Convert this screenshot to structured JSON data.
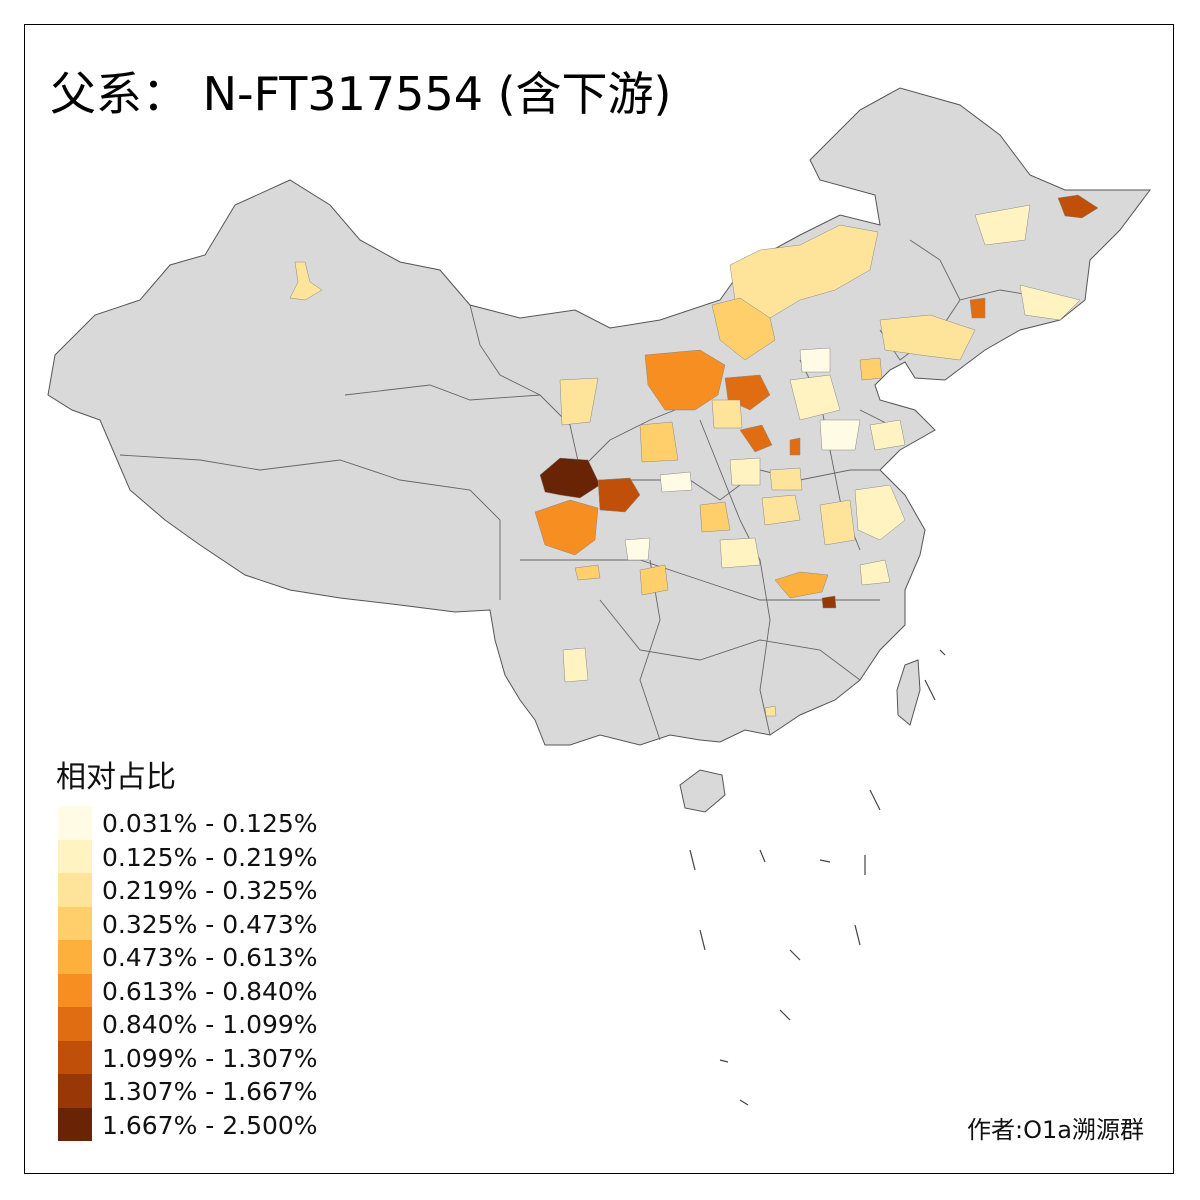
{
  "title": "父系：  N-FT317554 (含下游)",
  "legend": {
    "title": "相对占比",
    "items": [
      {
        "label": "0.031% - 0.125%",
        "color": "#fffbe5"
      },
      {
        "label": "0.125% - 0.219%",
        "color": "#fff3c2"
      },
      {
        "label": "0.219% - 0.325%",
        "color": "#fee49a"
      },
      {
        "label": "0.325% - 0.473%",
        "color": "#fecf6a"
      },
      {
        "label": "0.473% - 0.613%",
        "color": "#feb03d"
      },
      {
        "label": "0.613% - 0.840%",
        "color": "#f68e22"
      },
      {
        "label": "0.840% - 1.099%",
        "color": "#e06d12"
      },
      {
        "label": "1.099% - 1.307%",
        "color": "#c04f0a"
      },
      {
        "label": "1.307% - 1.667%",
        "color": "#973806"
      },
      {
        "label": "1.667% - 2.500%",
        "color": "#692406"
      }
    ]
  },
  "credit": "作者:O1a溯源群",
  "map": {
    "base_color": "#d9d9d9",
    "border_color": "#555555"
  }
}
